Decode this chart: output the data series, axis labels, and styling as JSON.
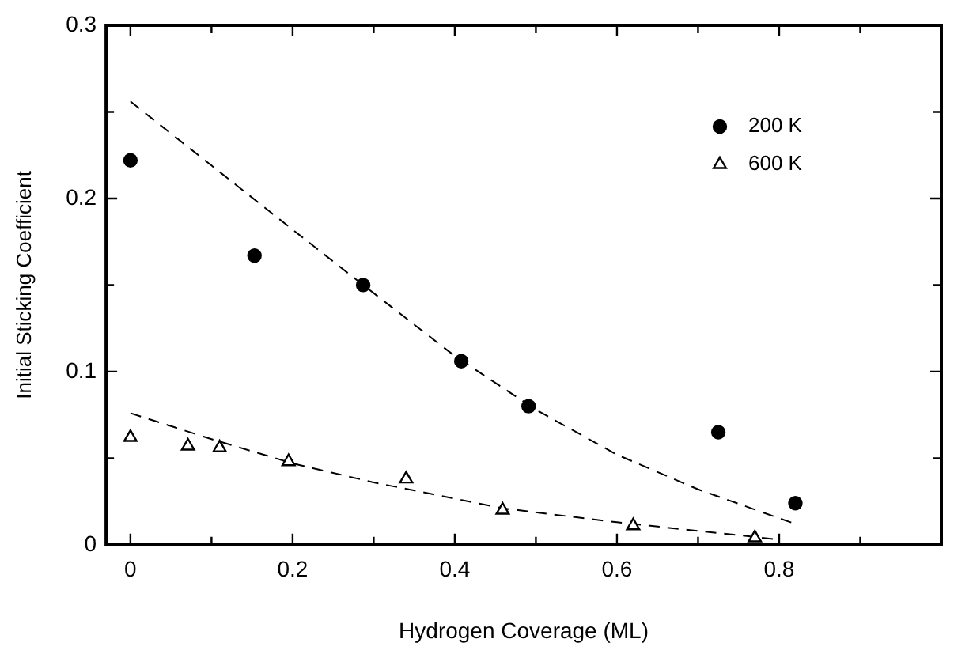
{
  "chart_data": {
    "type": "scatter",
    "xlabel": "Hydrogen Coverage (ML)",
    "ylabel": "Initial Sticking Coefficient",
    "xlim": [
      -0.03,
      1.0
    ],
    "ylim": [
      0,
      0.3
    ],
    "xticks": [
      0,
      {
        "value": 0.1,
        "label": null
      },
      0.2,
      {
        "value": 0.3,
        "label": null
      },
      0.4,
      {
        "value": 0.5,
        "label": null
      },
      0.6,
      {
        "value": 0.7,
        "label": null
      },
      0.8,
      {
        "value": 0.9,
        "label": null
      },
      {
        "value": 1.0,
        "label": null
      }
    ],
    "yticks": [
      0,
      {
        "value": 0.05,
        "label": null
      },
      0.1,
      {
        "value": 0.15,
        "label": null
      },
      0.2,
      {
        "value": 0.25,
        "label": null
      },
      0.3
    ],
    "grid": false,
    "legend": "top right",
    "series": [
      {
        "name": "200 K",
        "marker": "circle",
        "color": "#000000",
        "x": [
          0,
          0.153,
          0.287,
          0.408,
          0.491,
          0.725,
          0.82
        ],
        "values": [
          0.222,
          0.167,
          0.15,
          0.106,
          0.08,
          0.065,
          0.024
        ]
      },
      {
        "name": "600 K",
        "marker": "triangle",
        "color": "#000000",
        "x": [
          0,
          0.071,
          0.11,
          0.195,
          0.34,
          0.459,
          0.62,
          0.77
        ],
        "values": [
          0.062,
          0.057,
          0.056,
          0.048,
          0.038,
          0.02,
          0.011,
          0.004
        ]
      },
      {
        "type": "line",
        "marker": "none",
        "line_style": "dashed",
        "color": "#000000",
        "x": [
          0,
          0.1,
          0.2,
          0.287,
          0.4,
          0.5,
          0.6,
          0.7,
          0.82
        ],
        "values": [
          0.256,
          0.219,
          0.182,
          0.15,
          0.109,
          0.078,
          0.052,
          0.032,
          0.012
        ]
      },
      {
        "type": "line",
        "marker": "none",
        "line_style": "dashed",
        "color": "#000000",
        "x": [
          0,
          0.1,
          0.2,
          0.3,
          0.46,
          0.6,
          0.7,
          0.8
        ],
        "values": [
          0.076,
          0.061,
          0.047,
          0.036,
          0.021,
          0.013,
          0.008,
          0.003
        ]
      }
    ]
  }
}
